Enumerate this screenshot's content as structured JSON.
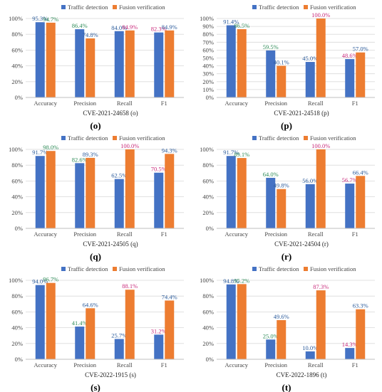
{
  "legend_labels": [
    "Traffic detection",
    "Fusion verification"
  ],
  "chart_data": [
    {
      "type": "bar",
      "title": "CVE-2021-24658 (o)",
      "panel_letter": "(o)",
      "categories": [
        "Accuracy",
        "Precision",
        "Recall",
        "F1"
      ],
      "series": [
        {
          "name": "Traffic detection",
          "values": [
            95.3,
            86.4,
            84.0,
            82.3
          ],
          "color": "#4472C4",
          "labels": [
            "95.3%",
            "86.4%",
            "84.0%",
            "82.3%"
          ]
        },
        {
          "name": "Fusion verification",
          "values": [
            94.7,
            74.8,
            84.9,
            84.9
          ],
          "color": "#ED7D31",
          "labels": [
            "94.7%",
            "74.8%",
            "84.9%",
            "84.9%"
          ]
        }
      ],
      "yticks": [
        "0%",
        "20%",
        "40%",
        "60%",
        "80%",
        "100%"
      ],
      "ylim": [
        0,
        100
      ]
    },
    {
      "type": "bar",
      "title": "CVE-2021-24518 (p)",
      "panel_letter": "(p)",
      "categories": [
        "Accuracy",
        "Precision",
        "Recall",
        "F1"
      ],
      "series": [
        {
          "name": "Traffic detection",
          "values": [
            91.4,
            59.5,
            45.0,
            48.6
          ],
          "color": "#4472C4",
          "labels": [
            "91.4%",
            "59.5%",
            "45.0%",
            "48.6%"
          ]
        },
        {
          "name": "Fusion verification",
          "values": [
            86.5,
            40.1,
            100.0,
            57.0
          ],
          "color": "#ED7D31",
          "labels": [
            "86.5%",
            "40.1%",
            "100.0%",
            "57.0%"
          ]
        }
      ],
      "yticks": [
        "0%",
        "10%",
        "20%",
        "30%",
        "40%",
        "50%",
        "60%",
        "70%",
        "80%",
        "90%",
        "100%"
      ],
      "ylim": [
        0,
        100
      ]
    },
    {
      "type": "bar",
      "title": "CVE-2021-24505 (q)",
      "panel_letter": "(q)",
      "categories": [
        "Accuracy",
        "Precision",
        "Recall",
        "F1"
      ],
      "series": [
        {
          "name": "Traffic detection",
          "values": [
            91.7,
            82.6,
            62.5,
            70.5
          ],
          "color": "#4472C4",
          "labels": [
            "91.7%",
            "82.6%",
            "62.5%",
            "70.5%"
          ]
        },
        {
          "name": "Fusion verification",
          "values": [
            98.0,
            89.3,
            100.0,
            94.3
          ],
          "color": "#ED7D31",
          "labels": [
            "98.0%",
            "89.3%",
            "100.0%",
            "94.3%"
          ]
        }
      ],
      "yticks": [
        "0%",
        "20%",
        "40%",
        "60%",
        "80%",
        "100%"
      ],
      "ylim": [
        0,
        100
      ]
    },
    {
      "type": "bar",
      "title": "CVE-2021-24504 (r)",
      "panel_letter": "(r)",
      "categories": [
        "Accuracy",
        "Precision",
        "Recall",
        "F1"
      ],
      "series": [
        {
          "name": "Traffic detection",
          "values": [
            91.7,
            64.0,
            56.0,
            56.7
          ],
          "color": "#4472C4",
          "labels": [
            "91.7%",
            "64.0%",
            "56.0%",
            "56.7%"
          ]
        },
        {
          "name": "Fusion verification",
          "values": [
            89.1,
            49.8,
            100.0,
            66.4
          ],
          "color": "#ED7D31",
          "labels": [
            "89.1%",
            "49.8%",
            "100.0%",
            "66.4%"
          ]
        }
      ],
      "yticks": [
        "0%",
        "20%",
        "40%",
        "60%",
        "80%",
        "100%"
      ],
      "ylim": [
        0,
        100
      ]
    },
    {
      "type": "bar",
      "title": "CVE-2022-1915 (s)",
      "panel_letter": "(s)",
      "categories": [
        "Accuracy",
        "Precision",
        "Recall",
        "F1"
      ],
      "series": [
        {
          "name": "Traffic detection",
          "values": [
            94.0,
            41.4,
            25.7,
            31.2
          ],
          "color": "#4472C4",
          "labels": [
            "94.0%",
            "41.4%",
            "25.7%",
            "31.2%"
          ]
        },
        {
          "name": "Fusion verification",
          "values": [
            96.7,
            64.6,
            88.1,
            74.4
          ],
          "color": "#ED7D31",
          "labels": [
            "96.7%",
            "64.6%",
            "88.1%",
            "74.4%"
          ]
        }
      ],
      "yticks": [
        "0%",
        "20%",
        "40%",
        "60%",
        "80%",
        "100%"
      ],
      "ylim": [
        0,
        100
      ]
    },
    {
      "type": "bar",
      "title": "CVE-2022-1896 (t)",
      "panel_letter": "(t)",
      "categories": [
        "Accuracy",
        "Precision",
        "Recall",
        "F1"
      ],
      "series": [
        {
          "name": "Traffic detection",
          "values": [
            94.8,
            25.0,
            10.0,
            14.3
          ],
          "color": "#4472C4",
          "labels": [
            "94.8%",
            "25.0%",
            "10.0%",
            "14.3%"
          ]
        },
        {
          "name": "Fusion verification",
          "values": [
            95.2,
            49.6,
            87.3,
            63.3
          ],
          "color": "#ED7D31",
          "labels": [
            "95.2%",
            "49.6%",
            "87.3%",
            "63.3%"
          ]
        }
      ],
      "yticks": [
        "0%",
        "20%",
        "40%",
        "60%",
        "80%",
        "100%"
      ],
      "ylim": [
        0,
        100
      ]
    }
  ]
}
